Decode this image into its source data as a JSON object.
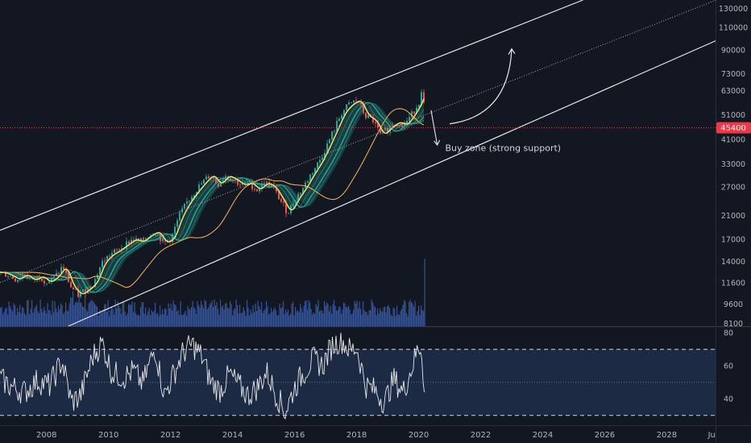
{
  "chart_data": {
    "type": "line",
    "price_axis": {
      "scale": "log",
      "ticks": [
        130000,
        110000,
        90000,
        73000,
        63000,
        51000,
        41000,
        33000,
        27000,
        21000,
        17000,
        14000,
        11600,
        9600,
        8100
      ],
      "range": [
        7900,
        140000
      ]
    },
    "time_axis": {
      "ticks": [
        "2008",
        "2010",
        "2012",
        "2014",
        "2016",
        "2018",
        "2020",
        "2022",
        "2024",
        "2026",
        "2028",
        "Ju"
      ],
      "range": [
        2006.5,
        2029.6
      ]
    },
    "current_price": {
      "value": 45400,
      "label": "45400",
      "color": "#f23645"
    },
    "annotation": {
      "text": "Buy zone (strong support)",
      "x": 2020.7,
      "y": 38000
    },
    "trend_channel": {
      "upper_line": [
        [
          2006.5,
          18400
        ],
        [
          2025.3,
          140000
        ]
      ],
      "middle_line": [
        [
          2006.5,
          11600
        ],
        [
          2029.6,
          140000
        ]
      ],
      "lower_line": [
        [
          2008.7,
          7900
        ],
        [
          2029.6,
          98000
        ]
      ]
    },
    "projection_arrow": {
      "from": [
        2021.0,
        47000
      ],
      "to": [
        2023.0,
        91000
      ]
    },
    "pullback_arrow": {
      "from": [
        2020.4,
        53000
      ],
      "to": [
        2020.6,
        39000
      ]
    },
    "price_series": [
      [
        "2006.50",
        12700
      ],
      [
        "2006.75",
        12400
      ],
      [
        "2007.00",
        11900
      ],
      [
        "2007.25",
        12500
      ],
      [
        "2007.50",
        11800
      ],
      [
        "2007.75",
        12300
      ],
      [
        "2008.00",
        11600
      ],
      [
        "2008.25",
        12200
      ],
      [
        "2008.50",
        13400
      ],
      [
        "2008.75",
        11200
      ],
      [
        "2009.00",
        10400
      ],
      [
        "2009.25",
        10900
      ],
      [
        "2009.50",
        11600
      ],
      [
        "2009.75",
        13800
      ],
      [
        "2010.00",
        14800
      ],
      [
        "2010.25",
        15400
      ],
      [
        "2010.50",
        16200
      ],
      [
        "2010.75",
        17000
      ],
      [
        "2011.00",
        16600
      ],
      [
        "2011.25",
        17600
      ],
      [
        "2011.50",
        18200
      ],
      [
        "2011.75",
        16400
      ],
      [
        "2012.00",
        17200
      ],
      [
        "2012.25",
        20800
      ],
      [
        "2012.50",
        23500
      ],
      [
        "2012.75",
        25800
      ],
      [
        "2013.00",
        28000
      ],
      [
        "2013.25",
        30000
      ],
      [
        "2013.50",
        27500
      ],
      [
        "2013.75",
        29800
      ],
      [
        "2014.00",
        28800
      ],
      [
        "2014.25",
        27400
      ],
      [
        "2014.50",
        28000
      ],
      [
        "2014.75",
        26200
      ],
      [
        "2015.00",
        28000
      ],
      [
        "2015.25",
        27000
      ],
      [
        "2015.50",
        24200
      ],
      [
        "2015.75",
        21500
      ],
      [
        "2016.00",
        24300
      ],
      [
        "2016.25",
        26800
      ],
      [
        "2016.50",
        30200
      ],
      [
        "2016.75",
        33500
      ],
      [
        "2017.00",
        38500
      ],
      [
        "2017.25",
        44800
      ],
      [
        "2017.50",
        52000
      ],
      [
        "2017.75",
        56000
      ],
      [
        "2018.00",
        58000
      ],
      [
        "2018.25",
        50500
      ],
      [
        "2018.50",
        48500
      ],
      [
        "2018.75",
        42500
      ],
      [
        "2019.00",
        45500
      ],
      [
        "2019.25",
        47800
      ],
      [
        "2019.50",
        46500
      ],
      [
        "2019.75",
        51000
      ],
      [
        "2020.00",
        57500
      ],
      [
        "2020.10",
        63500
      ],
      [
        "2020.20",
        46000
      ]
    ],
    "rsi": {
      "levels": [
        80,
        60,
        40
      ],
      "overbought": 70,
      "oversold": 30,
      "mid": 50,
      "range": [
        24,
        84
      ],
      "series": [
        [
          "2006.50",
          52
        ],
        [
          "2006.90",
          47
        ],
        [
          "2007.30",
          44
        ],
        [
          "2007.70",
          51
        ],
        [
          "2008.10",
          48
        ],
        [
          "2008.50",
          63
        ],
        [
          "2008.80",
          38
        ],
        [
          "2009.10",
          42
        ],
        [
          "2009.50",
          66
        ],
        [
          "2009.80",
          74
        ],
        [
          "2010.10",
          56
        ],
        [
          "2010.50",
          53
        ],
        [
          "2010.80",
          57
        ],
        [
          "2011.10",
          49
        ],
        [
          "2011.50",
          71
        ],
        [
          "2011.80",
          42
        ],
        [
          "2012.10",
          55
        ],
        [
          "2012.40",
          68
        ],
        [
          "2012.70",
          73
        ],
        [
          "2013.00",
          66
        ],
        [
          "2013.30",
          50
        ],
        [
          "2013.60",
          45
        ],
        [
          "2013.90",
          55
        ],
        [
          "2014.20",
          48
        ],
        [
          "2014.50",
          42
        ],
        [
          "2014.80",
          47
        ],
        [
          "2015.10",
          56
        ],
        [
          "2015.40",
          43
        ],
        [
          "2015.70",
          32
        ],
        [
          "2016.00",
          47
        ],
        [
          "2016.30",
          56
        ],
        [
          "2016.60",
          64
        ],
        [
          "2016.90",
          60
        ],
        [
          "2017.20",
          72
        ],
        [
          "2017.50",
          76
        ],
        [
          "2017.80",
          69
        ],
        [
          "2018.00",
          71
        ],
        [
          "2018.30",
          48
        ],
        [
          "2018.60",
          45
        ],
        [
          "2018.90",
          38
        ],
        [
          "2019.20",
          52
        ],
        [
          "2019.50",
          44
        ],
        [
          "2019.80",
          60
        ],
        [
          "2020.00",
          72
        ],
        [
          "2020.10",
          70
        ],
        [
          "2020.20",
          38
        ]
      ]
    },
    "volume": {
      "baseline": 7900,
      "typical_level": 9300,
      "spike": {
        "x": 2020.18,
        "level": 14300
      }
    },
    "colors": {
      "background": "#131722",
      "rsi_band": "#1c2a44",
      "grid": "#2a2e39",
      "channel": "#e6e6e6",
      "candle_up": "#26a69a",
      "candle_down": "#ef5350",
      "volume": "#3a5ba8",
      "ma_yellow": "#f5e663",
      "ma_teal": "#26a69a",
      "ma_orange": "#ffb74d",
      "ribbon": "#1e6f6a",
      "axis_text": "#b2b5be",
      "annotation_text": "#d1d4dc"
    }
  }
}
